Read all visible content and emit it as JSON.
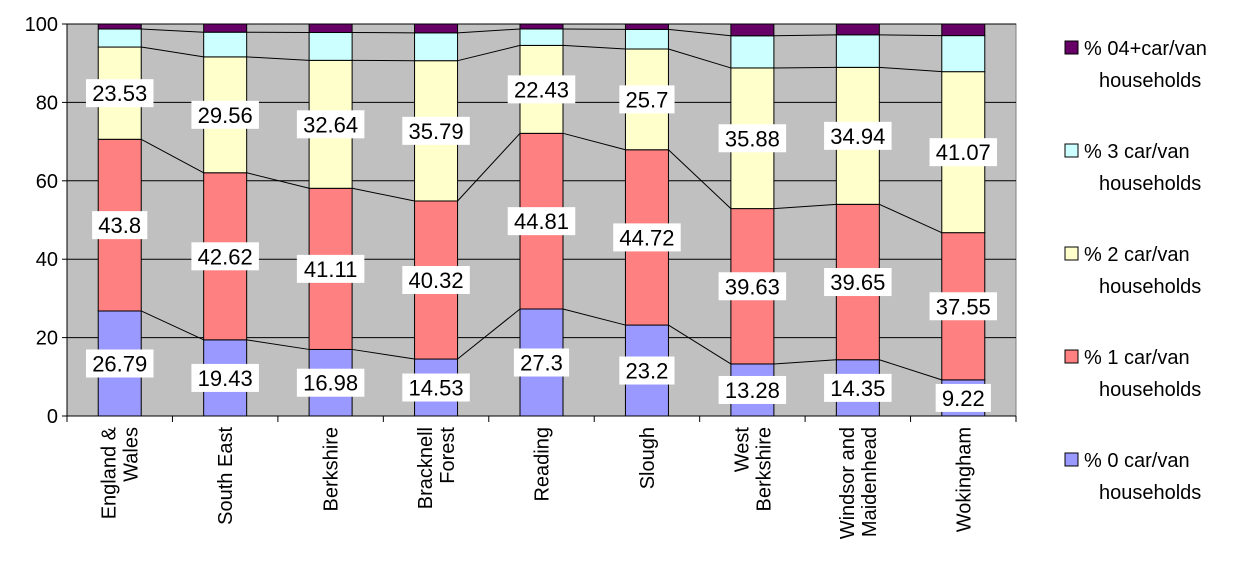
{
  "chart_data": {
    "type": "bar",
    "stacked": true,
    "percent_stacked": true,
    "categories": [
      "England & Wales",
      "South East",
      "Berkshire",
      "Bracknell Forest",
      "Reading",
      "Slough",
      "West Berkshire",
      "Windsor and Maidenhead",
      "Wokingham"
    ],
    "category_lines": [
      [
        "England &",
        "Wales"
      ],
      [
        "South East"
      ],
      [
        "Berkshire"
      ],
      [
        "Bracknell",
        "Forest"
      ],
      [
        "Reading"
      ],
      [
        "Slough"
      ],
      [
        "West",
        "Berkshire"
      ],
      [
        "Windsor and",
        "Maidenhead"
      ],
      [
        "Wokingham"
      ]
    ],
    "series": [
      {
        "name": "% 0 car/van households",
        "legend_lines": [
          "% 0 car/van",
          "households"
        ],
        "color": "#9999ff",
        "values": [
          26.79,
          19.43,
          16.98,
          14.53,
          27.3,
          23.2,
          13.28,
          14.35,
          9.22
        ],
        "labels": [
          "26.79",
          "19.43",
          "16.98",
          "14.53",
          "27.3",
          "23.2",
          "13.28",
          "14.35",
          "9.22"
        ]
      },
      {
        "name": "% 1 car/van households",
        "legend_lines": [
          "% 1 car/van",
          "households"
        ],
        "color": "#ff8080",
        "values": [
          43.8,
          42.62,
          41.11,
          40.32,
          44.81,
          44.72,
          39.63,
          39.65,
          37.55
        ],
        "labels": [
          "43.8",
          "42.62",
          "41.11",
          "40.32",
          "44.81",
          "44.72",
          "39.63",
          "39.65",
          "37.55"
        ]
      },
      {
        "name": "% 2 car/van households",
        "legend_lines": [
          "% 2 car/van",
          "households"
        ],
        "color": "#ffffcc",
        "values": [
          23.53,
          29.56,
          32.64,
          35.79,
          22.43,
          25.7,
          35.88,
          34.94,
          41.07
        ],
        "labels": [
          "23.53",
          "29.56",
          "32.64",
          "35.79",
          "22.43",
          "25.7",
          "35.88",
          "34.94",
          "41.07"
        ]
      },
      {
        "name": "% 3 car/van households",
        "legend_lines": [
          "% 3 car/van",
          "households"
        ],
        "color": "#ccffff",
        "values": [
          4.6,
          6.3,
          7.1,
          7.1,
          4.2,
          5.0,
          8.2,
          8.3,
          9.2
        ],
        "labels": []
      },
      {
        "name": "% 04+car/van households",
        "legend_lines": [
          "% 04+car/van",
          "households"
        ],
        "color": "#660066",
        "values": [
          1.28,
          2.09,
          2.17,
          2.26,
          1.26,
          1.38,
          3.01,
          2.76,
          2.96
        ],
        "labels": []
      }
    ],
    "ylim": [
      0,
      100
    ],
    "yticks": [
      "0",
      "20",
      "40",
      "60",
      "80",
      "100"
    ],
    "series_lines": true,
    "grid": true,
    "plot_background": "#c0c0c0",
    "legend_position": "right",
    "title": "",
    "xlabel": "",
    "ylabel": ""
  }
}
